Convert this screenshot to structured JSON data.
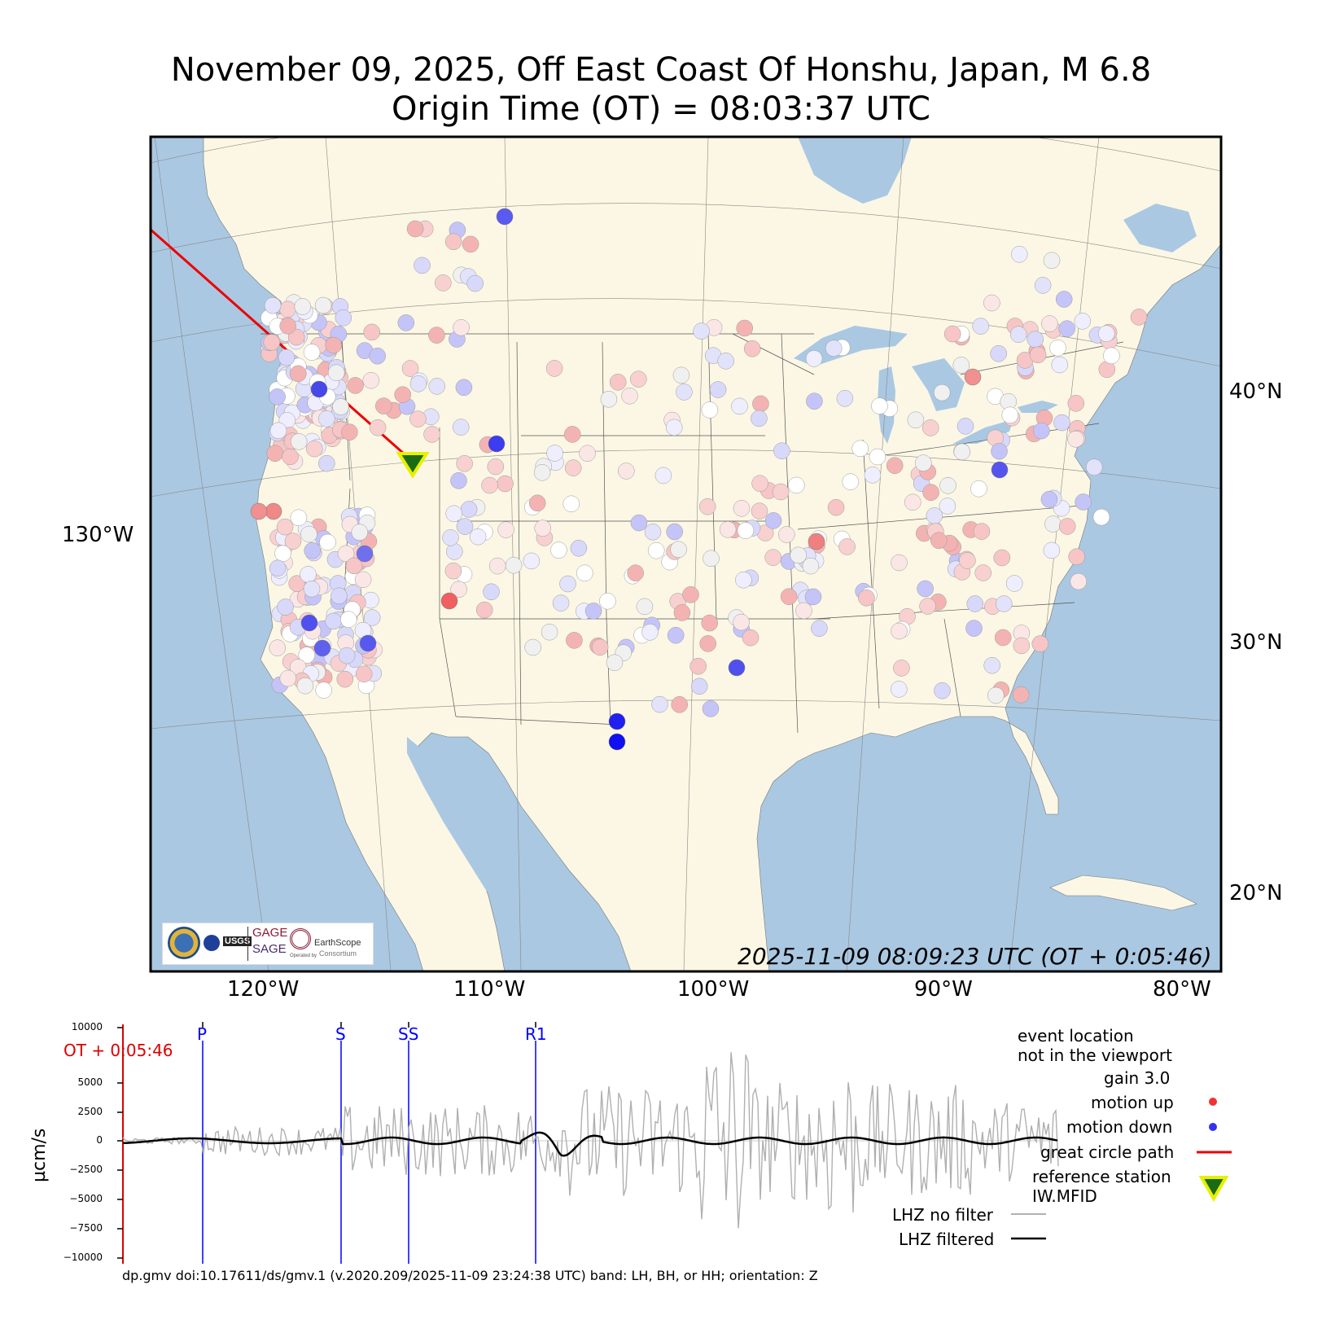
{
  "title": {
    "line1": "November 09, 2025, Off East Coast Of Honshu, Japan, M 6.8",
    "line2": "Origin Time (OT) = 08:03:37 UTC"
  },
  "map": {
    "timestamp": "2025-11-09 08:09:23 UTC (OT + 0:05:46)",
    "lon_labels": [
      "120°W",
      "110°W",
      "100°W",
      "90°W",
      "80°W"
    ],
    "lat_labels": [
      "40°N",
      "30°N",
      "20°N"
    ],
    "left_label": "130°W",
    "colors": {
      "ocean": "#aac8e2",
      "land": "#fbf7e4",
      "great_circle": "#ee0000",
      "reference_marker": "#1a6b12",
      "reference_marker_outline": "#e8f000"
    },
    "logos": {
      "usgs": "USGS",
      "gage": "GAGE",
      "sage": "SAGE",
      "earthscope": "EarthScope",
      "operated_by": "Operated by",
      "consortium": "Consortium"
    },
    "stations_note": "station markers are colored by motion (red up, blue down)"
  },
  "waveform": {
    "y_label": "µcm/s",
    "y_ticks": [
      "10000",
      "5000",
      "2500",
      "0",
      "−2500",
      "−5000",
      "−7500",
      "−10000"
    ],
    "ot_label": "OT + 0:05:46",
    "phases": [
      "P",
      "S",
      "SS",
      "R1"
    ],
    "legend": {
      "event_location": "event location",
      "not_in_viewport": "not in the viewport",
      "gain": "gain  3.0",
      "motion_up": "motion up",
      "motion_down": "motion down",
      "great_circle": "great circle path",
      "reference_station": "reference station",
      "station_code": "IW.MFID",
      "no_filter": "LHZ no filter",
      "filtered": "LHZ filtered"
    },
    "colors": {
      "motion_up": "#ee3333",
      "motion_down": "#3333ee",
      "raw_trace": "#b0b0b0",
      "filtered_trace": "#000000",
      "phase_line": "#0000ff",
      "ot_marker": "#dd0000"
    }
  },
  "footer": "dp.gmv doi:10.17611/ds/gmv.1 (v.2020.209/2025-11-09 23:24:38 UTC) band: LH, BH, or HH; orientation: Z"
}
